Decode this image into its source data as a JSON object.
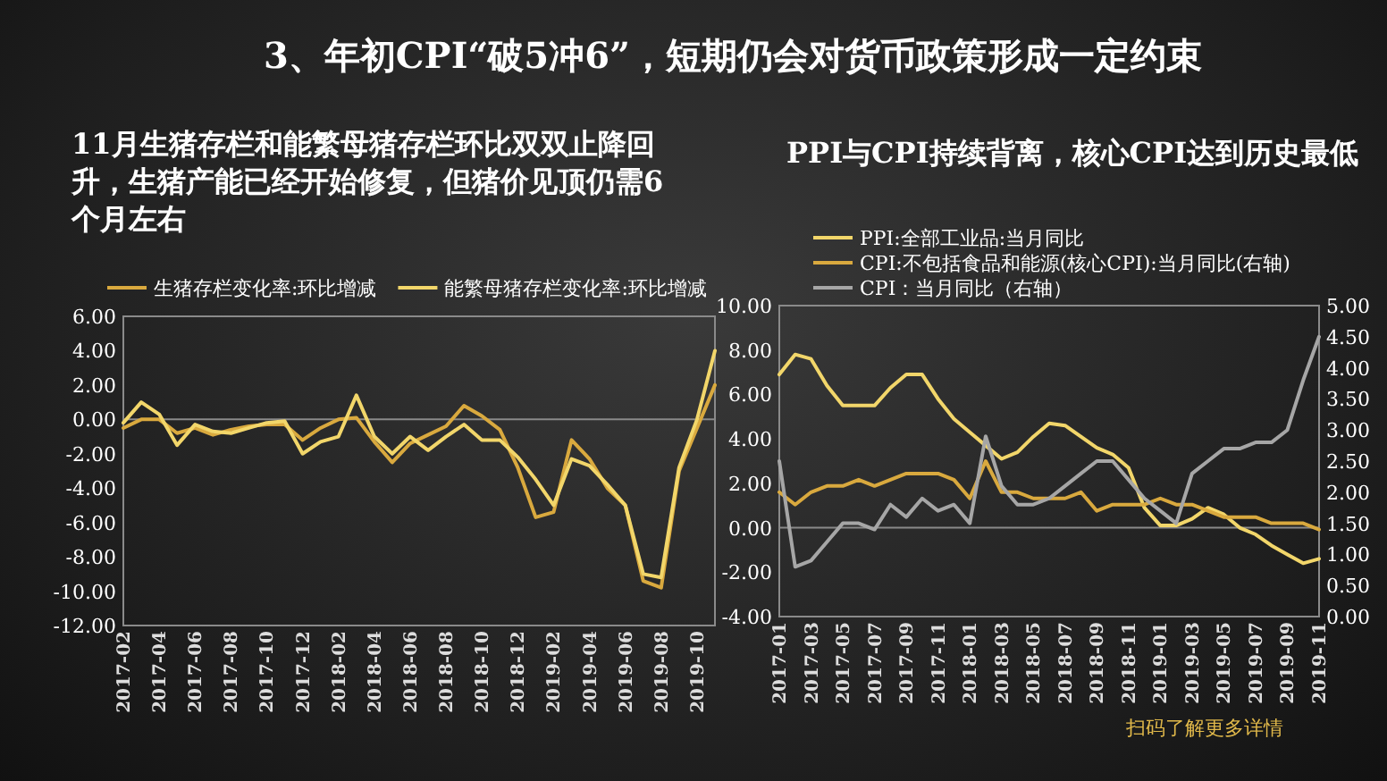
{
  "chart_data": [
    {
      "type": "other",
      "title": "3、年初CPI“破5冲6”，短期仍会对货币政策形成一定约束",
      "annotations": [
        "扫码了解更多详情"
      ]
    },
    {
      "type": "line",
      "title": "11月生猪存栏和能繁母猪存栏环比双双止降回升，生猪产能已经开始修复，但猪价见顶仍需6个月左右",
      "legend": "top",
      "categories": [
        "2017-02",
        null,
        "2017-04",
        null,
        "2017-06",
        null,
        "2017-08",
        null,
        "2017-10",
        null,
        "2017-12",
        null,
        "2018-02",
        null,
        "2018-04",
        null,
        "2018-06",
        null,
        "2018-08",
        null,
        "2018-10",
        null,
        "2018-12",
        null,
        "2019-02",
        null,
        "2019-04",
        null,
        "2019-06",
        null,
        "2019-08",
        null,
        "2019-10",
        null
      ],
      "ylim": [
        -12,
        6
      ],
      "yticks": [
        {
          "value": -12,
          "label": "-12.00"
        },
        {
          "value": -10,
          "label": "-10.00"
        },
        {
          "value": -8,
          "label": "-8.00"
        },
        {
          "value": -6,
          "label": "-6.00"
        },
        {
          "value": -4,
          "label": "-4.00"
        },
        {
          "value": -2,
          "label": "-2.00"
        },
        {
          "value": 0,
          "label": "0.00"
        },
        {
          "value": 2,
          "label": "2.00"
        },
        {
          "value": 4,
          "label": "4.00"
        },
        {
          "value": 6,
          "label": "6.00"
        }
      ],
      "series": [
        {
          "name": "生猪存栏变化率:环比增减",
          "color": "#d9a93e",
          "values": [
            -0.5,
            0,
            0,
            -0.8,
            -0.5,
            -0.9,
            -0.6,
            -0.4,
            -0.3,
            -0.3,
            -1.2,
            -0.5,
            0,
            0.1,
            -1.3,
            -2.5,
            -1.4,
            -0.9,
            -0.4,
            0.8,
            0.2,
            -0.6,
            -2.8,
            -5.7,
            -5.4,
            -1.2,
            -2.3,
            -4.0,
            -5.0,
            -9.4,
            -9.8,
            -3.0,
            -0.5,
            2.0
          ]
        },
        {
          "name": "能繁母猪存栏变化率:环比增减",
          "color": "#f2d66a",
          "values": [
            -0.2,
            1.0,
            0.3,
            -1.5,
            -0.3,
            -0.7,
            -0.8,
            -0.5,
            -0.2,
            -0.1,
            -2.0,
            -1.3,
            -1.0,
            1.4,
            -1.0,
            -2.0,
            -1.0,
            -1.8,
            -1.0,
            -0.3,
            -1.2,
            -1.2,
            -2.2,
            -3.5,
            -5.0,
            -2.3,
            -2.7,
            -3.8,
            -5.0,
            -9.0,
            -9.2,
            -2.8,
            0.0,
            4.0
          ]
        }
      ]
    },
    {
      "type": "line",
      "title": "PPI与CPI持续背离，核心CPI达到历史最低",
      "legend": "top left",
      "categories": [
        "2017-01",
        null,
        "2017-03",
        null,
        "2017-05",
        null,
        "2017-07",
        null,
        "2017-09",
        null,
        "2017-11",
        null,
        "2018-01",
        null,
        "2018-03",
        null,
        "2018-05",
        null,
        "2018-07",
        null,
        "2018-09",
        null,
        "2018-11",
        null,
        "2019-01",
        null,
        "2019-03",
        null,
        "2019-05",
        null,
        "2019-07",
        null,
        "2019-09",
        null,
        "2019-11"
      ],
      "ylim": [
        -4,
        10
      ],
      "yticks": [
        {
          "value": -4,
          "label": "-4.00"
        },
        {
          "value": -2,
          "label": "-2.00"
        },
        {
          "value": 0,
          "label": "0.00"
        },
        {
          "value": 2,
          "label": "2.00"
        },
        {
          "value": 4,
          "label": "4.00"
        },
        {
          "value": 6,
          "label": "6.00"
        },
        {
          "value": 8,
          "label": "8.00"
        },
        {
          "value": 10,
          "label": "10.00"
        }
      ],
      "y2lim": [
        0,
        5
      ],
      "y2ticks": [
        {
          "value": 0,
          "label": "0.00"
        },
        {
          "value": 0.5,
          "label": "0.50"
        },
        {
          "value": 1,
          "label": "1.00"
        },
        {
          "value": 1.5,
          "label": "1.50"
        },
        {
          "value": 2,
          "label": "2.00"
        },
        {
          "value": 2.5,
          "label": "2.50"
        },
        {
          "value": 3,
          "label": "3.00"
        },
        {
          "value": 3.5,
          "label": "3.50"
        },
        {
          "value": 4,
          "label": "4.00"
        },
        {
          "value": 4.5,
          "label": "4.50"
        },
        {
          "value": 5,
          "label": "5.00"
        }
      ],
      "series": [
        {
          "name": "PPI:全部工业品:当月同比",
          "color": "#f2d66a",
          "values": [
            6.9,
            7.8,
            7.6,
            6.4,
            5.5,
            5.5,
            5.5,
            6.3,
            6.9,
            6.9,
            5.8,
            4.9,
            4.3,
            3.7,
            3.1,
            3.4,
            4.1,
            4.7,
            4.6,
            4.1,
            3.6,
            3.3,
            2.7,
            0.9,
            0.1,
            0.1,
            0.4,
            0.9,
            0.6,
            0.0,
            -0.3,
            -0.8,
            -1.2,
            -1.6,
            -1.4
          ]
        },
        {
          "name": "CPI:不包括食品和能源(核心CPI):当月同比(右轴)",
          "color": "#d9a93e",
          "axis": "y2",
          "values": [
            2.0,
            1.8,
            2.0,
            2.1,
            2.1,
            2.2,
            2.1,
            2.2,
            2.3,
            2.3,
            2.3,
            2.2,
            1.9,
            2.5,
            2.0,
            2.0,
            1.9,
            1.9,
            1.9,
            2.0,
            1.7,
            1.8,
            1.8,
            1.8,
            1.9,
            1.8,
            1.8,
            1.7,
            1.6,
            1.6,
            1.6,
            1.5,
            1.5,
            1.5,
            1.4
          ]
        },
        {
          "name": "CPI：当月同比（右轴）",
          "color": "#a6a6a6",
          "axis": "y2",
          "values": [
            2.5,
            0.8,
            0.9,
            1.2,
            1.5,
            1.5,
            1.4,
            1.8,
            1.6,
            1.9,
            1.7,
            1.8,
            1.5,
            2.9,
            2.1,
            1.8,
            1.8,
            1.9,
            2.1,
            2.3,
            2.5,
            2.5,
            2.2,
            1.9,
            1.7,
            1.5,
            2.3,
            2.5,
            2.7,
            2.7,
            2.8,
            2.8,
            3.0,
            3.8,
            4.5
          ]
        }
      ]
    }
  ]
}
